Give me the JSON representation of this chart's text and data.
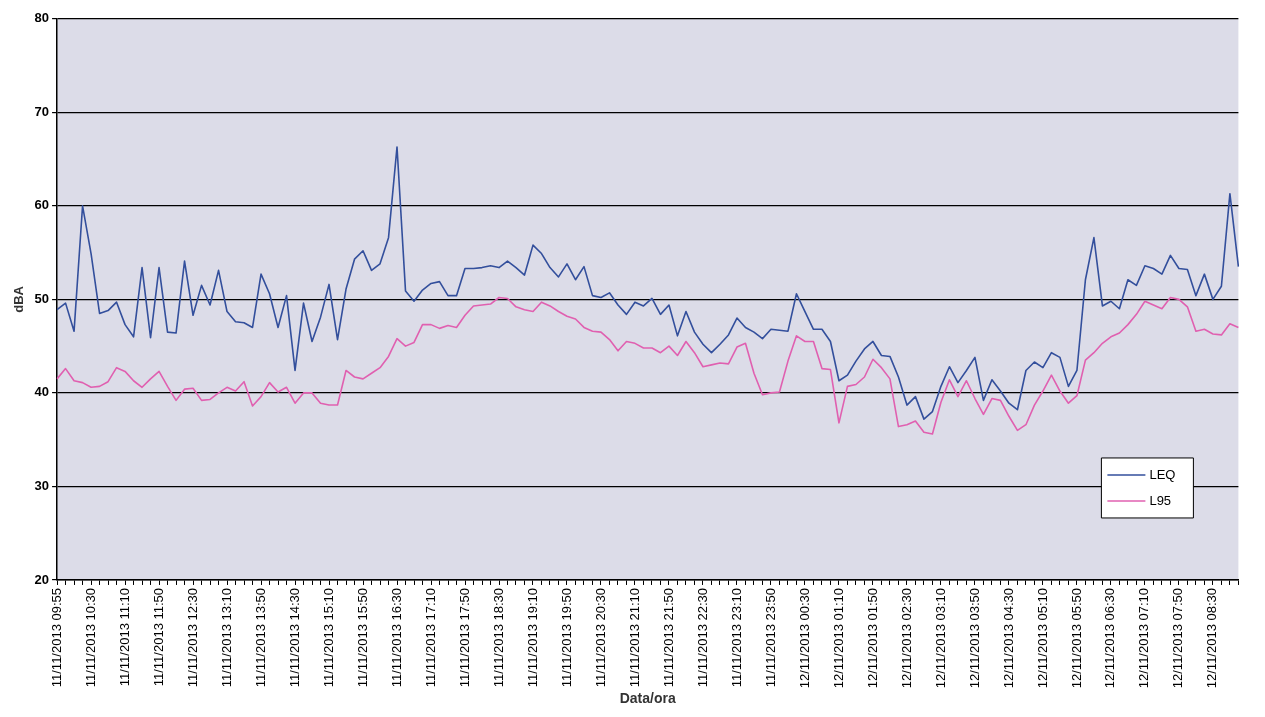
{
  "chart_data": {
    "type": "line",
    "xlabel": "Data/ora",
    "ylabel": "dBA",
    "categories": [
      "11/11/2013 09:55",
      null,
      null,
      null,
      "11/11/2013 10:30",
      null,
      null,
      null,
      "11/11/2013 11:10",
      null,
      null,
      null,
      "11/11/2013 11:50",
      null,
      null,
      null,
      "11/11/2013 12:30",
      null,
      null,
      null,
      "11/11/2013 13:10",
      null,
      null,
      null,
      "11/11/2013 13:50",
      null,
      null,
      null,
      "11/11/2013 14:30",
      null,
      null,
      null,
      "11/11/2013 15:10",
      null,
      null,
      null,
      "11/11/2013 15:50",
      null,
      null,
      null,
      "11/11/2013 16:30",
      null,
      null,
      null,
      "11/11/2013 17:10",
      null,
      null,
      null,
      "11/11/2013 17:50",
      null,
      null,
      null,
      "11/11/2013 18:30",
      null,
      null,
      null,
      "11/11/2013 19:10",
      null,
      null,
      null,
      "11/11/2013 19:50",
      null,
      null,
      null,
      "11/11/2013 20:30",
      null,
      null,
      null,
      "11/11/2013 21:10",
      null,
      null,
      null,
      "11/11/2013 21:50",
      null,
      null,
      null,
      "11/11/2013 22:30",
      null,
      null,
      null,
      "11/11/2013 23:10",
      null,
      null,
      null,
      "11/11/2013 23:50",
      null,
      null,
      null,
      "12/11/2013 00:30",
      null,
      null,
      null,
      "12/11/2013 01:10",
      null,
      null,
      null,
      "12/11/2013 01:50",
      null,
      null,
      null,
      "12/11/2013 02:30",
      null,
      null,
      null,
      "12/11/2013 03:10",
      null,
      null,
      null,
      "12/11/2013 03:50",
      null,
      null,
      null,
      "12/11/2013 04:30",
      null,
      null,
      null,
      "12/11/2013 05:10",
      null,
      null,
      null,
      "12/11/2013 05:50",
      null,
      null,
      null,
      "12/11/2013 06:30",
      null,
      null,
      null,
      "12/11/2013 07:10",
      null,
      null,
      null,
      "12/11/2013 07:50",
      null,
      null,
      null,
      "12/11/2013 08:30",
      null,
      null,
      null
    ],
    "series": [
      {
        "name": "LEQ",
        "color": "#334f9c",
        "values": [
          48.9,
          49.6,
          46.6,
          60.0,
          54.9,
          48.5,
          48.8,
          49.7,
          47.3,
          46.0,
          53.4,
          45.9,
          53.4,
          46.5,
          46.4,
          54.1,
          48.3,
          51.5,
          49.4,
          53.1,
          48.7,
          47.6,
          47.5,
          47.0,
          52.7,
          50.6,
          47.0,
          50.4,
          42.4,
          49.6,
          45.5,
          48.1,
          51.6,
          45.7,
          51.1,
          54.3,
          55.2,
          53.1,
          53.8,
          56.6,
          66.3,
          50.9,
          49.8,
          51.0,
          51.7,
          51.9,
          50.4,
          50.4,
          53.3,
          53.3,
          53.4,
          53.6,
          53.4,
          54.1,
          53.4,
          52.6,
          55.8,
          54.9,
          53.4,
          52.4,
          53.8,
          52.1,
          53.5,
          50.4,
          50.2,
          50.7,
          49.4,
          48.4,
          49.7,
          49.3,
          50.1,
          48.4,
          49.4,
          46.1,
          48.7,
          46.5,
          45.2,
          44.3,
          45.2,
          46.2,
          48.0,
          47.0,
          46.5,
          45.8,
          46.8,
          46.7,
          46.6,
          50.6,
          48.7,
          46.8,
          46.8,
          45.5,
          41.3,
          41.9,
          43.4,
          44.7,
          45.5,
          44.0,
          43.9,
          41.7,
          38.7,
          39.6,
          37.2,
          38.0,
          40.7,
          42.8,
          41.1,
          42.4,
          43.8,
          39.2,
          41.4,
          40.2,
          38.9,
          38.2,
          42.4,
          43.3,
          42.7,
          44.3,
          43.8,
          40.7,
          42.4,
          52.1,
          56.6,
          49.3,
          49.8,
          49.0,
          52.1,
          51.5,
          53.6,
          53.3,
          52.7,
          54.7,
          53.3,
          53.2,
          50.4,
          52.7,
          50.0,
          51.4,
          61.3,
          53.5
        ]
      },
      {
        "name": "L95",
        "color": "#e060b0",
        "values": [
          41.5,
          42.6,
          41.3,
          41.1,
          40.6,
          40.7,
          41.2,
          42.7,
          42.3,
          41.3,
          40.6,
          41.5,
          42.3,
          40.7,
          39.2,
          40.4,
          40.5,
          39.2,
          39.3,
          40.0,
          40.6,
          40.2,
          41.2,
          38.6,
          39.6,
          41.1,
          40.1,
          40.6,
          38.9,
          40.0,
          40.0,
          38.9,
          38.7,
          38.7,
          42.4,
          41.7,
          41.5,
          42.1,
          42.7,
          43.9,
          45.8,
          45.0,
          45.4,
          47.3,
          47.3,
          46.9,
          47.2,
          47.0,
          48.3,
          49.3,
          49.4,
          49.5,
          50.2,
          50.1,
          49.2,
          48.9,
          48.7,
          49.7,
          49.3,
          48.7,
          48.2,
          47.9,
          47.0,
          46.6,
          46.5,
          45.7,
          44.5,
          45.5,
          45.3,
          44.8,
          44.8,
          44.3,
          45.0,
          44.0,
          45.5,
          44.3,
          42.8,
          43.0,
          43.2,
          43.1,
          44.9,
          45.3,
          42.1,
          39.8,
          40.0,
          40.1,
          43.4,
          46.1,
          45.5,
          45.5,
          42.6,
          42.5,
          36.8,
          40.7,
          40.9,
          41.7,
          43.6,
          42.7,
          41.5,
          36.4,
          36.6,
          37.0,
          35.8,
          35.6,
          39.0,
          41.4,
          39.6,
          41.3,
          39.4,
          37.7,
          39.4,
          39.2,
          37.5,
          36.0,
          36.6,
          38.7,
          40.2,
          41.9,
          40.2,
          38.9,
          39.7,
          43.5,
          44.3,
          45.3,
          46.0,
          46.4,
          47.3,
          48.4,
          49.8,
          49.4,
          49.0,
          50.2,
          50.0,
          49.2,
          46.6,
          46.8,
          46.3,
          46.2,
          47.4,
          47.0
        ]
      }
    ],
    "ylim": [
      20,
      80
    ],
    "yticks": [
      20,
      30,
      40,
      50,
      60,
      70,
      80
    ],
    "grid": "y",
    "legend": "bottom right",
    "marker": "none",
    "line_style": "solid"
  }
}
